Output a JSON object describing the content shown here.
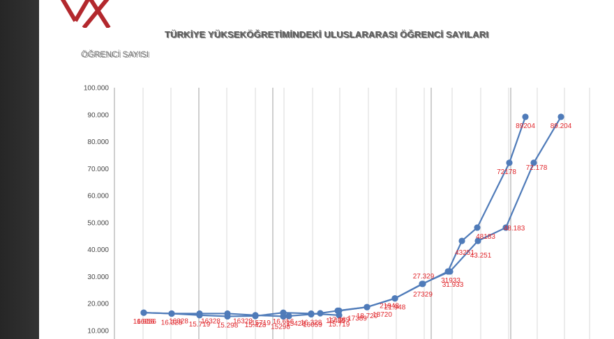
{
  "window": {
    "background": "#2b2b2b",
    "slide_background": "#ffffff"
  },
  "brand": {
    "logo_icon": "yok-logo-icon",
    "logo_color": "#b3282d"
  },
  "chart_data": {
    "type": "line",
    "title": "TÜRKİYE YÜKSEKÖĞRETİMİNDEKİ ULUSLARARASI ÖĞRENCİ SAYILARI",
    "ylabel": "ÖĞRENCİ SAYISI",
    "xlabel": "",
    "ylim": [
      10000,
      100000
    ],
    "yticks": [
      "10.000",
      "20.000",
      "30.000",
      "40.000",
      "50.000",
      "60.000",
      "70.000",
      "80.000",
      "90.000",
      "100.000"
    ],
    "grid": {
      "vertical": true,
      "horizontal": false
    },
    "legend": "none",
    "colors": {
      "line": "#4f7bb9",
      "marker": "#4f7bb9",
      "data_label": "#e0262b",
      "axis_text": "#444444"
    },
    "series": [
      {
        "values": [
          16656,
          16328,
          15719,
          15298,
          15428,
          16656,
          16328,
          15719,
          17389,
          18720,
          21948,
          27329,
          31933,
          43251,
          48183,
          72178,
          89204
        ],
        "labels": [
          "16.656",
          "16.328",
          "15.719",
          "15.298",
          "15.428",
          "16.656",
          "16.328",
          "15.719",
          "17.389",
          "18.720",
          "21.948",
          "27.329",
          "31.933",
          "43.251",
          "48.183",
          "72.178",
          "89.204"
        ]
      },
      {
        "values": [
          16656,
          16328,
          16328,
          16328,
          15719,
          15298,
          15428,
          16059,
          16455,
          17389,
          18720,
          21948,
          27329,
          31933,
          43251,
          48183,
          72178,
          89204
        ],
        "labels": [
          "16656",
          "16328",
          "16328",
          "16328",
          "15719",
          "15298",
          "15428",
          "16059",
          "16455",
          "17389",
          "18720",
          "21948",
          "27329",
          "31933",
          "43251",
          "48183",
          "72178",
          "89204"
        ]
      }
    ]
  }
}
